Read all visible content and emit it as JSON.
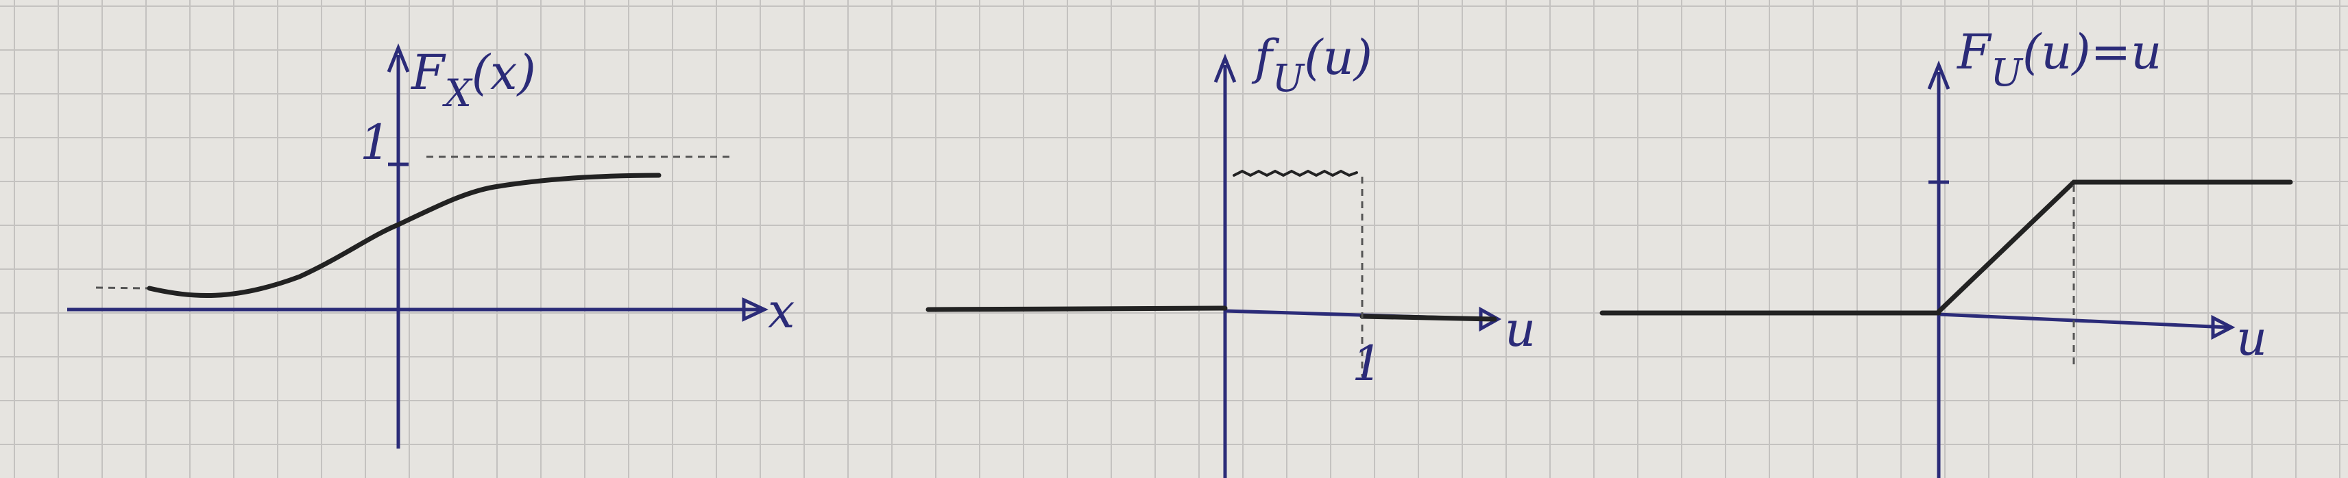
{
  "plots": [
    {
      "y_label": {
        "symbol": "F",
        "subscript": "X",
        "argument": "(x)"
      },
      "y_tick": "1",
      "x_label": "x"
    },
    {
      "y_label": {
        "symbol": "f",
        "subscript": "U",
        "argument": "(u)"
      },
      "x_tick": "1",
      "x_label": "u"
    },
    {
      "y_label": {
        "symbol": "F",
        "subscript": "U",
        "argument": "(u)",
        "suffix": "=u"
      },
      "x_label": "u"
    }
  ]
}
